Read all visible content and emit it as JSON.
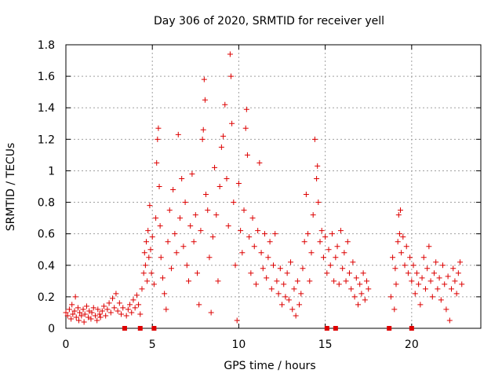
{
  "chart_data": {
    "type": "scatter",
    "title": "Day 306 of 2020, SRMTID for receiver yell",
    "xlabel": "GPS time / hours",
    "ylabel": "SRMTID / TECUs",
    "xlim": [
      0,
      24
    ],
    "ylim": [
      0,
      1.8
    ],
    "xticks": [
      0,
      5,
      10,
      15,
      20
    ],
    "xtick_labels": [
      "0",
      "5",
      "10",
      "15",
      "20"
    ],
    "yticks": [
      0,
      0.2,
      0.4,
      0.6,
      0.8,
      1,
      1.2,
      1.4,
      1.6,
      1.8
    ],
    "ytick_labels": [
      "0",
      "0.2",
      "0.4",
      "0.6",
      "0.8",
      "1",
      "1.2",
      "1.4",
      "1.6",
      "1.8"
    ],
    "grid": true,
    "marker": "+",
    "color": "#dd0000",
    "zero_markers_x": [
      3.4,
      4.3,
      5.1,
      15.1,
      15.6,
      18.7,
      20.0
    ],
    "series": [
      {
        "name": "SRMTID",
        "points": [
          [
            0.0,
            0.1
          ],
          [
            0.1,
            0.08
          ],
          [
            0.2,
            0.12
          ],
          [
            0.3,
            0.06
          ],
          [
            0.35,
            0.15
          ],
          [
            0.4,
            0.09
          ],
          [
            0.5,
            0.11
          ],
          [
            0.55,
            0.2
          ],
          [
            0.6,
            0.07
          ],
          [
            0.7,
            0.13
          ],
          [
            0.75,
            0.05
          ],
          [
            0.8,
            0.1
          ],
          [
            0.9,
            0.08
          ],
          [
            1.0,
            0.12
          ],
          [
            1.05,
            0.04
          ],
          [
            1.1,
            0.09
          ],
          [
            1.2,
            0.14
          ],
          [
            1.3,
            0.07
          ],
          [
            1.35,
            0.11
          ],
          [
            1.45,
            0.06
          ],
          [
            1.5,
            0.1
          ],
          [
            1.6,
            0.13
          ],
          [
            1.7,
            0.08
          ],
          [
            1.8,
            0.05
          ],
          [
            1.85,
            0.12
          ],
          [
            1.95,
            0.09
          ],
          [
            2.0,
            0.07
          ],
          [
            2.1,
            0.11
          ],
          [
            2.2,
            0.14
          ],
          [
            2.3,
            0.08
          ],
          [
            2.4,
            0.12
          ],
          [
            2.5,
            0.16
          ],
          [
            2.6,
            0.1
          ],
          [
            2.7,
            0.19
          ],
          [
            2.8,
            0.13
          ],
          [
            2.9,
            0.22
          ],
          [
            3.0,
            0.11
          ],
          [
            3.1,
            0.16
          ],
          [
            3.2,
            0.09
          ],
          [
            3.3,
            0.13
          ],
          [
            3.5,
            0.08
          ],
          [
            3.6,
            0.12
          ],
          [
            3.7,
            0.15
          ],
          [
            3.8,
            0.1
          ],
          [
            3.9,
            0.18
          ],
          [
            4.0,
            0.13
          ],
          [
            4.1,
            0.21
          ],
          [
            4.2,
            0.15
          ],
          [
            4.3,
            0.09
          ],
          [
            4.4,
            0.25
          ],
          [
            4.5,
            0.35
          ],
          [
            4.55,
            0.48
          ],
          [
            4.6,
            0.4
          ],
          [
            4.65,
            0.55
          ],
          [
            4.7,
            0.3
          ],
          [
            4.75,
            0.62
          ],
          [
            4.8,
            0.45
          ],
          [
            4.85,
            0.78
          ],
          [
            4.9,
            0.5
          ],
          [
            4.95,
            0.35
          ],
          [
            5.0,
            0.58
          ],
          [
            5.1,
            0.28
          ],
          [
            5.2,
            0.7
          ],
          [
            5.25,
            1.05
          ],
          [
            5.3,
            1.2
          ],
          [
            5.35,
            1.27
          ],
          [
            5.4,
            0.9
          ],
          [
            5.45,
            0.65
          ],
          [
            5.5,
            0.45
          ],
          [
            5.6,
            0.32
          ],
          [
            5.7,
            0.22
          ],
          [
            5.8,
            0.12
          ],
          [
            5.9,
            0.55
          ],
          [
            6.0,
            0.75
          ],
          [
            6.1,
            0.38
          ],
          [
            6.2,
            0.88
          ],
          [
            6.3,
            0.6
          ],
          [
            6.4,
            0.48
          ],
          [
            6.5,
            1.23
          ],
          [
            6.6,
            0.7
          ],
          [
            6.7,
            0.95
          ],
          [
            6.8,
            0.52
          ],
          [
            6.9,
            0.8
          ],
          [
            7.0,
            0.4
          ],
          [
            7.1,
            0.3
          ],
          [
            7.2,
            0.65
          ],
          [
            7.3,
            0.98
          ],
          [
            7.4,
            0.55
          ],
          [
            7.5,
            0.72
          ],
          [
            7.6,
            0.35
          ],
          [
            7.7,
            0.15
          ],
          [
            7.8,
            0.62
          ],
          [
            7.9,
            1.2
          ],
          [
            7.95,
            1.26
          ],
          [
            8.0,
            1.58
          ],
          [
            8.05,
            1.45
          ],
          [
            8.1,
            0.85
          ],
          [
            8.2,
            0.75
          ],
          [
            8.3,
            0.45
          ],
          [
            8.4,
            0.1
          ],
          [
            8.5,
            0.58
          ],
          [
            8.6,
            1.02
          ],
          [
            8.7,
            0.72
          ],
          [
            8.8,
            0.3
          ],
          [
            8.9,
            0.9
          ],
          [
            9.0,
            1.15
          ],
          [
            9.1,
            1.22
          ],
          [
            9.2,
            1.42
          ],
          [
            9.3,
            0.95
          ],
          [
            9.4,
            0.65
          ],
          [
            9.5,
            1.74
          ],
          [
            9.55,
            1.6
          ],
          [
            9.6,
            1.3
          ],
          [
            9.7,
            0.8
          ],
          [
            9.8,
            0.4
          ],
          [
            9.9,
            0.05
          ],
          [
            10.0,
            0.92
          ],
          [
            10.1,
            0.62
          ],
          [
            10.2,
            0.48
          ],
          [
            10.3,
            0.75
          ],
          [
            10.4,
            1.27
          ],
          [
            10.45,
            1.39
          ],
          [
            10.5,
            1.1
          ],
          [
            10.6,
            0.58
          ],
          [
            10.7,
            0.35
          ],
          [
            10.8,
            0.7
          ],
          [
            10.9,
            0.52
          ],
          [
            11.0,
            0.28
          ],
          [
            11.1,
            0.62
          ],
          [
            11.2,
            1.05
          ],
          [
            11.3,
            0.48
          ],
          [
            11.4,
            0.38
          ],
          [
            11.5,
            0.6
          ],
          [
            11.6,
            0.32
          ],
          [
            11.7,
            0.45
          ],
          [
            11.8,
            0.55
          ],
          [
            11.9,
            0.25
          ],
          [
            12.0,
            0.4
          ],
          [
            12.1,
            0.6
          ],
          [
            12.2,
            0.3
          ],
          [
            12.3,
            0.22
          ],
          [
            12.4,
            0.38
          ],
          [
            12.5,
            0.15
          ],
          [
            12.6,
            0.28
          ],
          [
            12.7,
            0.2
          ],
          [
            12.8,
            0.35
          ],
          [
            12.9,
            0.18
          ],
          [
            13.0,
            0.42
          ],
          [
            13.1,
            0.12
          ],
          [
            13.2,
            0.25
          ],
          [
            13.3,
            0.08
          ],
          [
            13.4,
            0.3
          ],
          [
            13.5,
            0.15
          ],
          [
            13.6,
            0.22
          ],
          [
            13.7,
            0.38
          ],
          [
            13.8,
            0.55
          ],
          [
            13.9,
            0.85
          ],
          [
            14.0,
            0.6
          ],
          [
            14.1,
            0.3
          ],
          [
            14.2,
            0.48
          ],
          [
            14.3,
            0.72
          ],
          [
            14.4,
            1.2
          ],
          [
            14.5,
            0.95
          ],
          [
            14.55,
            1.03
          ],
          [
            14.6,
            0.8
          ],
          [
            14.7,
            0.55
          ],
          [
            14.8,
            0.62
          ],
          [
            14.9,
            0.45
          ],
          [
            15.0,
            0.58
          ],
          [
            15.1,
            0.35
          ],
          [
            15.2,
            0.5
          ],
          [
            15.3,
            0.4
          ],
          [
            15.4,
            0.6
          ],
          [
            15.5,
            0.3
          ],
          [
            15.6,
            0.45
          ],
          [
            15.7,
            0.52
          ],
          [
            15.8,
            0.28
          ],
          [
            15.9,
            0.62
          ],
          [
            16.0,
            0.38
          ],
          [
            16.1,
            0.48
          ],
          [
            16.2,
            0.3
          ],
          [
            16.3,
            0.55
          ],
          [
            16.4,
            0.35
          ],
          [
            16.5,
            0.25
          ],
          [
            16.6,
            0.42
          ],
          [
            16.7,
            0.2
          ],
          [
            16.8,
            0.32
          ],
          [
            16.9,
            0.15
          ],
          [
            17.0,
            0.28
          ],
          [
            17.1,
            0.22
          ],
          [
            17.2,
            0.35
          ],
          [
            17.3,
            0.18
          ],
          [
            17.4,
            0.3
          ],
          [
            17.5,
            0.25
          ],
          [
            18.8,
            0.2
          ],
          [
            18.9,
            0.45
          ],
          [
            19.0,
            0.12
          ],
          [
            19.05,
            0.38
          ],
          [
            19.1,
            0.28
          ],
          [
            19.2,
            0.55
          ],
          [
            19.25,
            0.72
          ],
          [
            19.3,
            0.6
          ],
          [
            19.35,
            0.75
          ],
          [
            19.4,
            0.48
          ],
          [
            19.5,
            0.58
          ],
          [
            19.6,
            0.4
          ],
          [
            19.7,
            0.52
          ],
          [
            19.8,
            0.35
          ],
          [
            19.9,
            0.45
          ],
          [
            20.0,
            0.3
          ],
          [
            20.1,
            0.4
          ],
          [
            20.2,
            0.22
          ],
          [
            20.3,
            0.35
          ],
          [
            20.4,
            0.28
          ],
          [
            20.5,
            0.15
          ],
          [
            20.6,
            0.32
          ],
          [
            20.7,
            0.45
          ],
          [
            20.8,
            0.25
          ],
          [
            20.9,
            0.38
          ],
          [
            21.0,
            0.52
          ],
          [
            21.1,
            0.3
          ],
          [
            21.2,
            0.2
          ],
          [
            21.3,
            0.35
          ],
          [
            21.4,
            0.42
          ],
          [
            21.5,
            0.25
          ],
          [
            21.6,
            0.32
          ],
          [
            21.7,
            0.18
          ],
          [
            21.8,
            0.4
          ],
          [
            21.9,
            0.28
          ],
          [
            22.0,
            0.12
          ],
          [
            22.1,
            0.33
          ],
          [
            22.2,
            0.05
          ],
          [
            22.3,
            0.25
          ],
          [
            22.4,
            0.38
          ],
          [
            22.5,
            0.3
          ],
          [
            22.6,
            0.22
          ],
          [
            22.7,
            0.35
          ],
          [
            22.8,
            0.42
          ],
          [
            22.9,
            0.28
          ]
        ]
      }
    ]
  }
}
